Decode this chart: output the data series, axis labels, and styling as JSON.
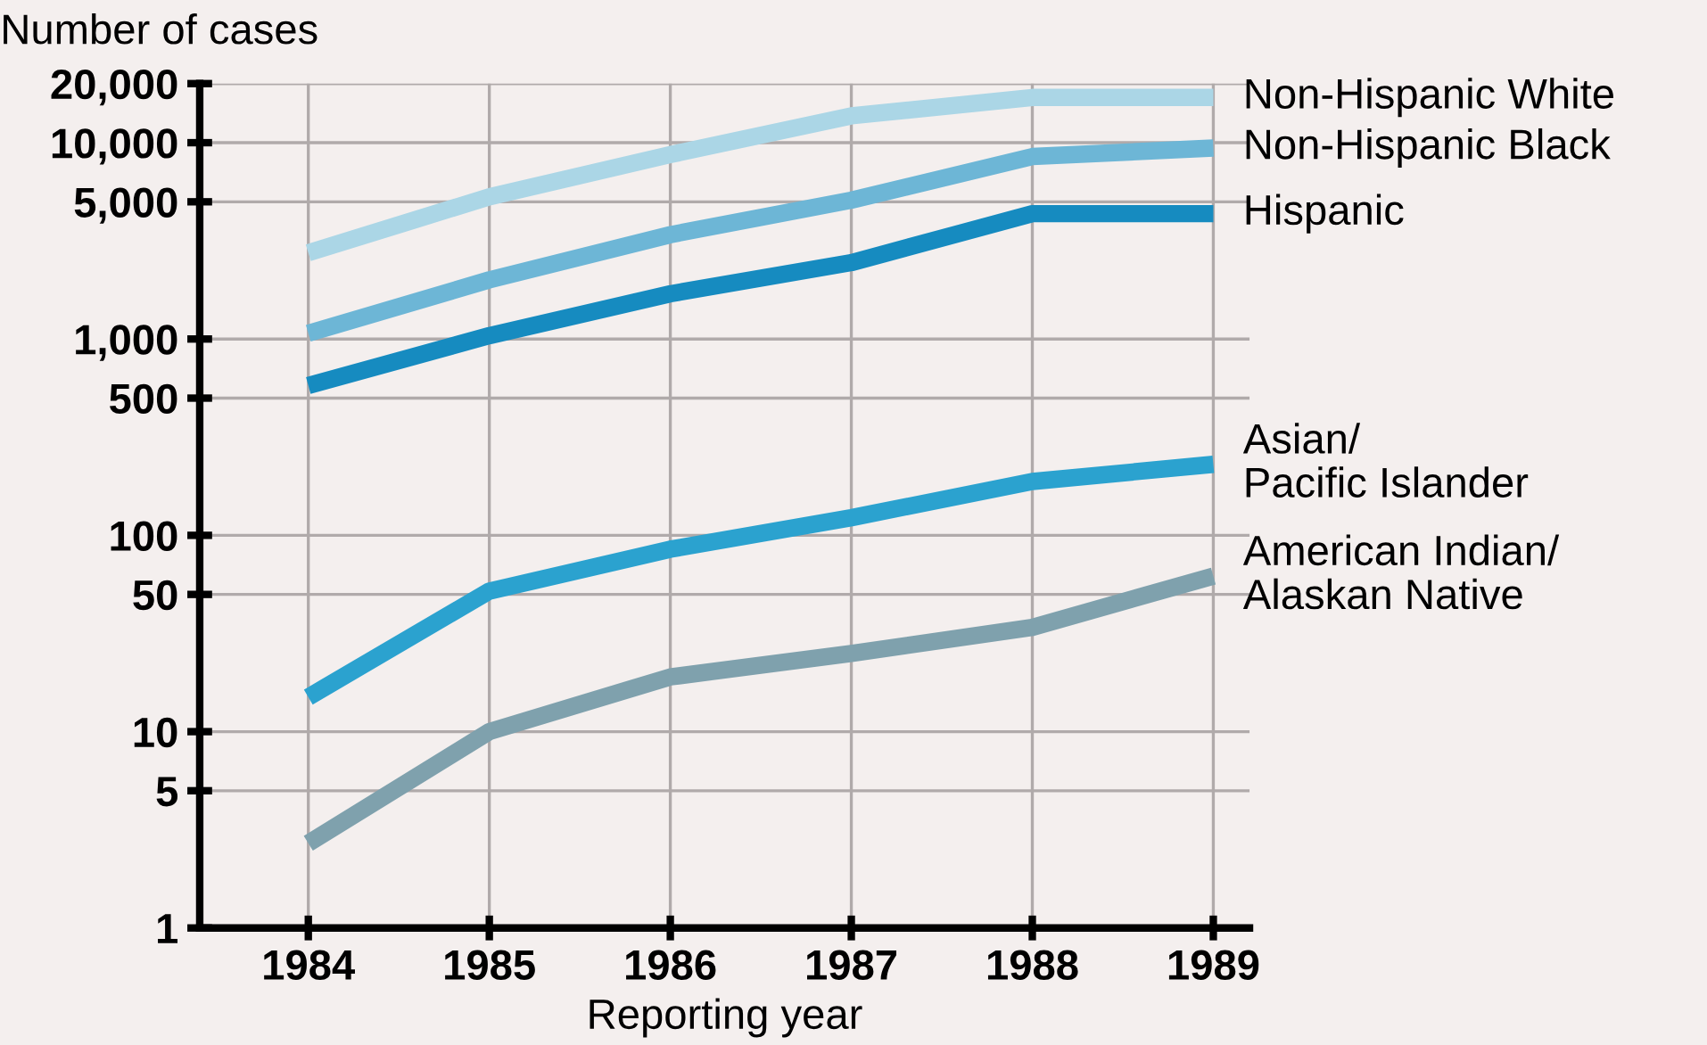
{
  "chart_data": {
    "type": "line",
    "ylabel": "Number of cases",
    "xlabel": "Reporting year",
    "categories": [
      "1984",
      "1985",
      "1986",
      "1987",
      "1988",
      "1989"
    ],
    "series": [
      {
        "name": "Non-Hispanic White",
        "color": "#abd6e6",
        "values": [
          2750,
          5300,
          8700,
          13700,
          17000,
          17000
        ]
      },
      {
        "name": "Non-Hispanic Black",
        "color": "#6db6d6",
        "values": [
          1070,
          2000,
          3400,
          5100,
          8500,
          9400
        ]
      },
      {
        "name": "Hispanic",
        "color": "#168bc0",
        "values": [
          580,
          1040,
          1700,
          2450,
          4350,
          4350
        ]
      },
      {
        "name": "Asian/\nPacific Islander",
        "color": "#2ba2cf",
        "values": [
          15,
          52,
          85,
          123,
          188,
          230
        ]
      },
      {
        "name": "American Indian/\nAlaskan Native",
        "color": "#7fa1ad",
        "values": [
          2.7,
          10,
          19,
          25,
          34,
          62
        ]
      }
    ],
    "log": "y",
    "ylim": [
      1,
      20000
    ],
    "yticks": [
      1,
      {
        "value": 5,
        "label": "5"
      },
      10,
      50,
      100,
      500,
      {
        "value": 1000,
        "label": "1,000"
      },
      {
        "value": 5000,
        "label": "5,000"
      },
      {
        "value": 10000,
        "label": "10,000"
      },
      {
        "value": 20000,
        "label": "20,000"
      }
    ],
    "grid": true,
    "legend": "right",
    "line_style": "solid",
    "marker": "none"
  }
}
